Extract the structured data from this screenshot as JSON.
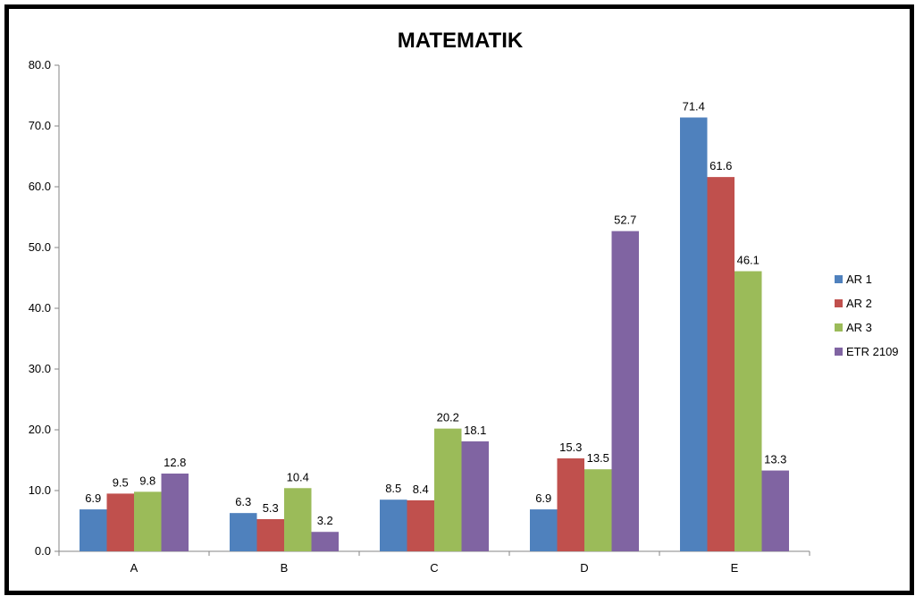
{
  "chart_data": {
    "type": "bar",
    "title": "MATEMATIK",
    "xlabel": "",
    "ylabel": "",
    "ylim": [
      0,
      80
    ],
    "ytick_step": 10,
    "ytick_format": "0.0",
    "grid": false,
    "legend_position": "right",
    "categories": [
      "A",
      "B",
      "C",
      "D",
      "E"
    ],
    "series": [
      {
        "name": "AR 1",
        "color": "#4F81BD",
        "values": [
          6.9,
          6.3,
          8.5,
          6.9,
          71.4
        ]
      },
      {
        "name": "AR 2",
        "color": "#C0504D",
        "values": [
          9.5,
          5.3,
          8.4,
          15.3,
          61.6
        ]
      },
      {
        "name": "AR 3",
        "color": "#9BBB59",
        "values": [
          9.8,
          10.4,
          20.2,
          13.5,
          46.1
        ]
      },
      {
        "name": "ETR 2109",
        "color": "#8064A2",
        "values": [
          12.8,
          3.2,
          18.1,
          52.7,
          13.3
        ]
      }
    ]
  }
}
